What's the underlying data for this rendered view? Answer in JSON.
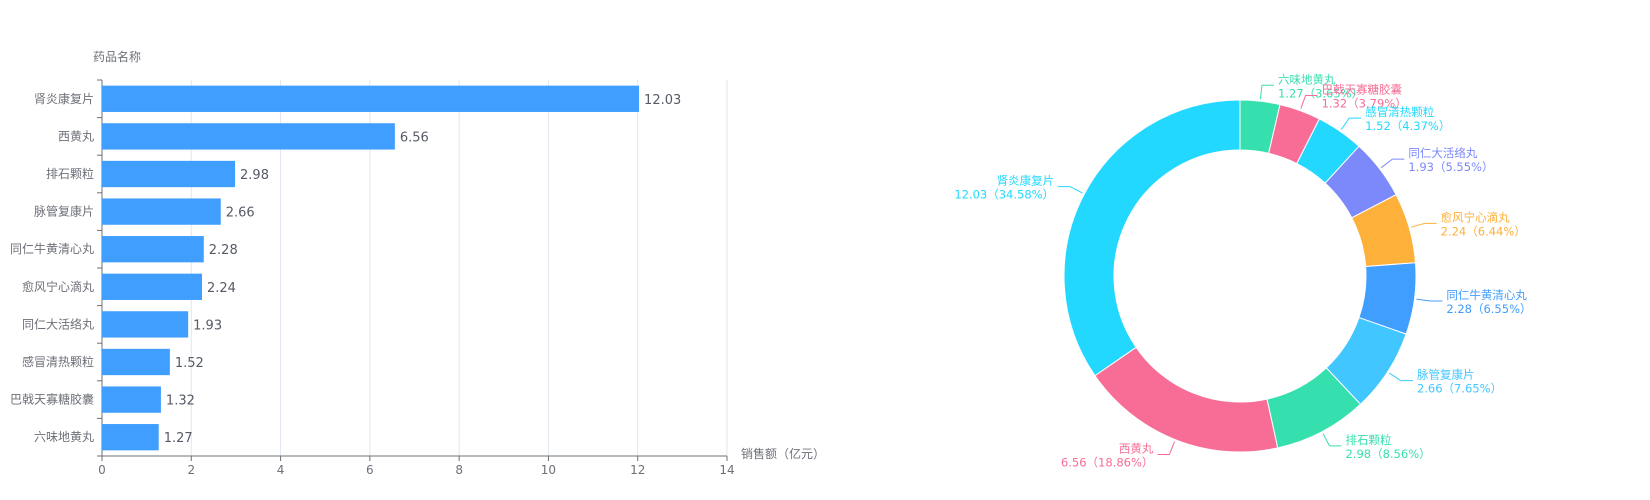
{
  "chart_data": [
    {
      "type": "bar",
      "orientation": "horizontal",
      "ylabel": "药品名称",
      "xlabel": "销售额（亿元）",
      "xlim": [
        0,
        14
      ],
      "xticks": [
        0,
        2,
        4,
        6,
        8,
        10,
        12,
        14
      ],
      "grid": true,
      "bar_color": "#409eff",
      "categories": [
        "肾炎康复片",
        "西黄丸",
        "排石颗粒",
        "脉管复康片",
        "同仁牛黄清心丸",
        "愈风宁心滴丸",
        "同仁大活络丸",
        "感冒清热颗粒",
        "巴戟天寡糖胶囊",
        "六味地黄丸"
      ],
      "values": [
        12.03,
        6.56,
        2.98,
        2.66,
        2.28,
        2.24,
        1.93,
        1.52,
        1.32,
        1.27
      ],
      "value_labels": [
        "12.03",
        "6.56",
        "2.98",
        "2.66",
        "2.28",
        "2.24",
        "1.93",
        "1.52",
        "1.32",
        "1.27"
      ]
    },
    {
      "type": "pie",
      "variant": "donut",
      "slices": [
        {
          "name": "六味地黄丸",
          "value": 1.27,
          "label": "1.27（3.65%）",
          "color": "#36dfae"
        },
        {
          "name": "巴戟天寡糖胶囊",
          "value": 1.32,
          "label": "1.32（3.79%）",
          "color": "#f76d95"
        },
        {
          "name": "感冒清热颗粒",
          "value": 1.52,
          "label": "1.52（4.37%）",
          "color": "#23d8ff"
        },
        {
          "name": "同仁大活络丸",
          "value": 1.93,
          "label": "1.93（5.55%）",
          "color": "#7b89fb"
        },
        {
          "name": "愈风宁心滴丸",
          "value": 2.24,
          "label": "2.24（6.44%）",
          "color": "#fdb03a"
        },
        {
          "name": "同仁牛黄清心丸",
          "value": 2.28,
          "label": "2.28（6.55%）",
          "color": "#409eff"
        },
        {
          "name": "脉管复康片",
          "value": 2.66,
          "label": "2.66（7.65%）",
          "color": "#42c6ff"
        },
        {
          "name": "排石颗粒",
          "value": 2.98,
          "label": "2.98（8.56%）",
          "color": "#36dfae"
        },
        {
          "name": "西黄丸",
          "value": 6.56,
          "label": "6.56（18.86%）",
          "color": "#f76d95"
        },
        {
          "name": "肾炎康复片",
          "value": 12.03,
          "label": "12.03（34.58%）",
          "color": "#23d8ff"
        }
      ]
    }
  ]
}
